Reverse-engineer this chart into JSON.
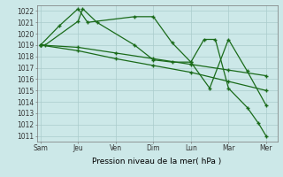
{
  "background_color": "#cce8e8",
  "grid_color": "#aacccc",
  "line_color": "#1a6b1a",
  "xlabel": "Pression niveau de la mer( hPa )",
  "xlabels": [
    "Sam",
    "Jeu",
    "Ven",
    "Dim",
    "Lun",
    "Mar",
    "Mer"
  ],
  "ylim": [
    1010.5,
    1022.5
  ],
  "yticks": [
    1011,
    1012,
    1013,
    1014,
    1015,
    1016,
    1017,
    1018,
    1019,
    1020,
    1021,
    1022
  ],
  "series1_x": [
    0,
    0.5,
    1.0,
    1.25,
    2.5,
    3.0,
    3.5,
    4.0,
    4.5,
    5.0,
    5.5,
    6.0
  ],
  "series1_y": [
    1019,
    1020.7,
    1022.2,
    1021.0,
    1021.5,
    1021.5,
    1019.2,
    1017.5,
    1015.2,
    1019.5,
    1016.7,
    1013.7
  ],
  "series2_x": [
    0,
    0.12,
    1.0,
    1.12,
    1.5,
    2.5,
    3.0,
    3.5,
    4.0,
    4.35,
    4.65,
    5.0,
    5.5,
    5.8,
    6.0
  ],
  "series2_y": [
    1019,
    1019,
    1021.1,
    1022.2,
    1021.0,
    1019.0,
    1017.7,
    1017.5,
    1017.5,
    1019.5,
    1019.5,
    1015.2,
    1013.5,
    1012.1,
    1011.0
  ],
  "series3_x": [
    0,
    1.0,
    2.0,
    3.0,
    4.0,
    5.0,
    6.0
  ],
  "series3_y": [
    1019,
    1018.8,
    1018.3,
    1017.8,
    1017.3,
    1016.8,
    1016.3
  ],
  "series4_x": [
    0,
    1.0,
    2.0,
    3.0,
    4.0,
    5.0,
    6.0
  ],
  "series4_y": [
    1019,
    1018.5,
    1017.8,
    1017.2,
    1016.6,
    1015.8,
    1015.0
  ],
  "figsize": [
    3.2,
    2.0
  ],
  "dpi": 100
}
